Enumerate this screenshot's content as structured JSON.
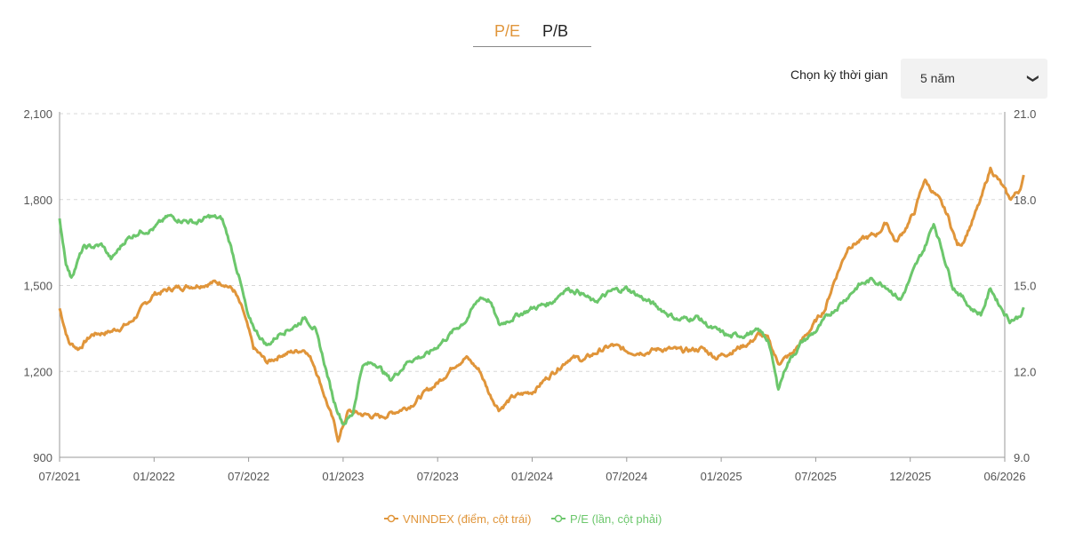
{
  "tabs": [
    {
      "label": "P/E",
      "active": true
    },
    {
      "label": "P/B",
      "active": false
    }
  ],
  "period": {
    "label": "Chọn kỳ thời gian",
    "selected": "5 năm"
  },
  "colors": {
    "vnindex": "#e0953a",
    "pe": "#6cc76c",
    "active_tab": "#e0953a"
  },
  "chart_data": {
    "type": "line",
    "x_ticks": [
      "07/2021",
      "01/2022",
      "07/2022",
      "01/2023",
      "07/2023",
      "01/2024",
      "07/2024",
      "01/2025",
      "07/2025",
      "12/2025",
      "06/2026"
    ],
    "y_left": {
      "min": 900,
      "max": 2100,
      "ticks": [
        "900",
        "1,200",
        "1,500",
        "1,800",
        "2,100"
      ]
    },
    "y_right": {
      "min": 9.0,
      "max": 21.0,
      "ticks": [
        "9.0",
        "12.0",
        "15.0",
        "18.0",
        "21.0"
      ]
    },
    "grid": "horizontal dashed",
    "legend_position": "bottom",
    "series": [
      {
        "name": "VNINDEX (điểm, cột trái)",
        "axis": "left",
        "color": "#e0953a",
        "points": [
          [
            0,
            1420
          ],
          [
            0.1,
            1300
          ],
          [
            0.2,
            1280
          ],
          [
            0.35,
            1330
          ],
          [
            0.55,
            1340
          ],
          [
            0.75,
            1370
          ],
          [
            1.0,
            1470
          ],
          [
            1.2,
            1490
          ],
          [
            1.4,
            1500
          ],
          [
            1.6,
            1510
          ],
          [
            1.75,
            1510
          ],
          [
            1.85,
            1480
          ],
          [
            1.95,
            1400
          ],
          [
            2.05,
            1280
          ],
          [
            2.2,
            1230
          ],
          [
            2.35,
            1260
          ],
          [
            2.5,
            1270
          ],
          [
            2.6,
            1280
          ],
          [
            2.7,
            1220
          ],
          [
            2.8,
            1120
          ],
          [
            2.9,
            1020
          ],
          [
            2.95,
            960
          ],
          [
            3.0,
            1010
          ],
          [
            3.05,
            1060
          ],
          [
            3.2,
            1050
          ],
          [
            3.4,
            1040
          ],
          [
            3.55,
            1060
          ],
          [
            3.7,
            1080
          ],
          [
            3.85,
            1120
          ],
          [
            4.0,
            1160
          ],
          [
            4.2,
            1230
          ],
          [
            4.3,
            1250
          ],
          [
            4.45,
            1200
          ],
          [
            4.55,
            1120
          ],
          [
            4.65,
            1070
          ],
          [
            4.8,
            1110
          ],
          [
            5.0,
            1130
          ],
          [
            5.2,
            1190
          ],
          [
            5.4,
            1250
          ],
          [
            5.55,
            1240
          ],
          [
            5.7,
            1270
          ],
          [
            5.85,
            1290
          ],
          [
            6.0,
            1270
          ],
          [
            6.2,
            1270
          ],
          [
            6.4,
            1280
          ],
          [
            6.6,
            1270
          ],
          [
            6.8,
            1280
          ],
          [
            6.95,
            1250
          ],
          [
            7.1,
            1270
          ],
          [
            7.3,
            1300
          ],
          [
            7.4,
            1330
          ],
          [
            7.5,
            1310
          ],
          [
            7.6,
            1230
          ],
          [
            7.75,
            1260
          ],
          [
            7.95,
            1350
          ],
          [
            8.1,
            1420
          ],
          [
            8.2,
            1520
          ],
          [
            8.35,
            1640
          ],
          [
            8.5,
            1660
          ],
          [
            8.65,
            1680
          ],
          [
            8.75,
            1720
          ],
          [
            8.85,
            1650
          ],
          [
            8.95,
            1700
          ],
          [
            9.05,
            1760
          ],
          [
            9.15,
            1870
          ],
          [
            9.3,
            1800
          ],
          [
            9.4,
            1740
          ],
          [
            9.5,
            1640
          ],
          [
            9.55,
            1650
          ],
          [
            9.65,
            1720
          ],
          [
            9.75,
            1800
          ],
          [
            9.85,
            1910
          ],
          [
            9.95,
            1860
          ],
          [
            10.05,
            1800
          ],
          [
            10.15,
            1830
          ],
          [
            10.2,
            1880
          ]
        ]
      },
      {
        "name": "P/E (lần, cột phải)",
        "axis": "right",
        "color": "#6cc76c",
        "points": [
          [
            0,
            17.3
          ],
          [
            0.07,
            15.8
          ],
          [
            0.12,
            15.3
          ],
          [
            0.25,
            16.3
          ],
          [
            0.45,
            16.4
          ],
          [
            0.55,
            15.9
          ],
          [
            0.7,
            16.6
          ],
          [
            0.85,
            16.9
          ],
          [
            1.0,
            17.0
          ],
          [
            1.15,
            17.4
          ],
          [
            1.3,
            17.3
          ],
          [
            1.45,
            17.2
          ],
          [
            1.6,
            17.4
          ],
          [
            1.72,
            17.3
          ],
          [
            1.8,
            16.5
          ],
          [
            1.9,
            15.3
          ],
          [
            2.0,
            13.8
          ],
          [
            2.1,
            13.3
          ],
          [
            2.2,
            12.9
          ],
          [
            2.35,
            13.4
          ],
          [
            2.5,
            13.6
          ],
          [
            2.6,
            13.9
          ],
          [
            2.7,
            13.5
          ],
          [
            2.8,
            12.3
          ],
          [
            2.9,
            11.0
          ],
          [
            3.0,
            10.2
          ],
          [
            3.1,
            10.5
          ],
          [
            3.2,
            12.2
          ],
          [
            3.35,
            12.3
          ],
          [
            3.5,
            11.7
          ],
          [
            3.7,
            12.4
          ],
          [
            3.9,
            12.6
          ],
          [
            4.1,
            13.2
          ],
          [
            4.3,
            13.8
          ],
          [
            4.45,
            14.6
          ],
          [
            4.55,
            14.5
          ],
          [
            4.65,
            13.6
          ],
          [
            4.8,
            13.9
          ],
          [
            5.0,
            14.2
          ],
          [
            5.2,
            14.4
          ],
          [
            5.35,
            14.9
          ],
          [
            5.5,
            14.8
          ],
          [
            5.65,
            14.4
          ],
          [
            5.85,
            14.8
          ],
          [
            6.0,
            14.9
          ],
          [
            6.2,
            14.5
          ],
          [
            6.35,
            14.2
          ],
          [
            6.55,
            13.8
          ],
          [
            6.75,
            13.9
          ],
          [
            6.9,
            13.5
          ],
          [
            7.1,
            13.2
          ],
          [
            7.25,
            13.3
          ],
          [
            7.4,
            13.4
          ],
          [
            7.5,
            13.1
          ],
          [
            7.6,
            11.4
          ],
          [
            7.7,
            12.3
          ],
          [
            7.85,
            13.0
          ],
          [
            8.0,
            13.4
          ],
          [
            8.15,
            14.0
          ],
          [
            8.3,
            14.5
          ],
          [
            8.45,
            15.0
          ],
          [
            8.6,
            15.2
          ],
          [
            8.75,
            15.0
          ],
          [
            8.9,
            14.5
          ],
          [
            9.05,
            15.6
          ],
          [
            9.15,
            16.3
          ],
          [
            9.25,
            17.2
          ],
          [
            9.35,
            16.1
          ],
          [
            9.45,
            15.0
          ],
          [
            9.55,
            14.6
          ],
          [
            9.65,
            14.2
          ],
          [
            9.75,
            14.0
          ],
          [
            9.85,
            14.9
          ],
          [
            9.95,
            14.3
          ],
          [
            10.05,
            13.8
          ],
          [
            10.15,
            13.9
          ],
          [
            10.2,
            14.2
          ]
        ]
      }
    ]
  }
}
